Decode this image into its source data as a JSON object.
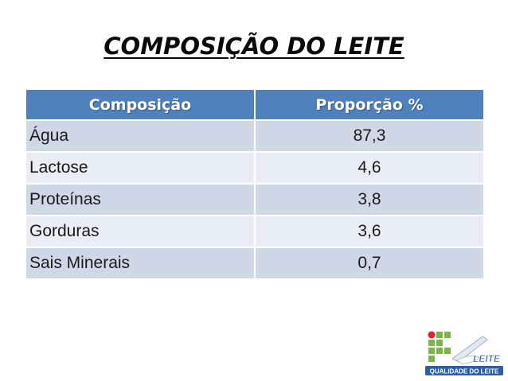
{
  "slide": {
    "title": "COMPOSIÇÃO DO LEITE"
  },
  "table": {
    "headers": [
      "Composição",
      "Proporção %"
    ],
    "rows": [
      {
        "component": "Água",
        "value": "87,3"
      },
      {
        "component": "Lactose",
        "value": "4,6"
      },
      {
        "component": "Proteínas",
        "value": "3,8"
      },
      {
        "component": "Gorduras",
        "value": "3,6"
      },
      {
        "component": "Sais Minerais",
        "value": "0,7"
      }
    ],
    "colors": {
      "header": "#4f81bd",
      "row_odd": "#d0d8e8",
      "row_even": "#e9edf4"
    }
  },
  "logo": {
    "text_top": "LEITE",
    "text_bottom": "QUALIDADE DO LEITE",
    "colors": {
      "green": "#7ab648",
      "red": "#d7262e",
      "blue": "#2a5fa8"
    }
  }
}
